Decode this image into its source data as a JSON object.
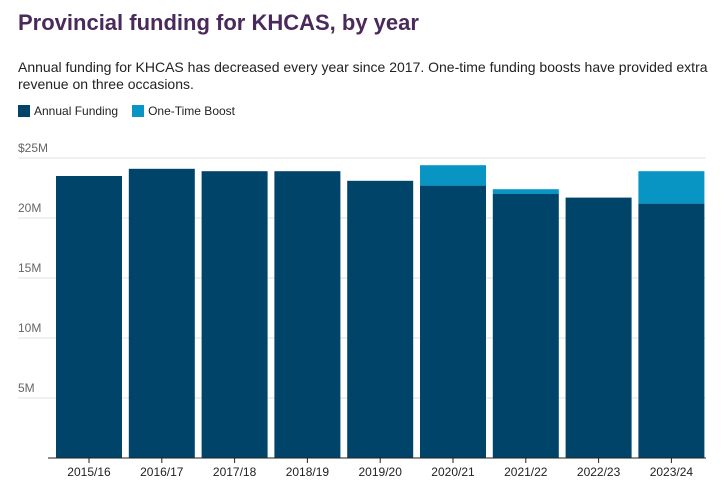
{
  "title": "Provincial funding for KHCAS, by year",
  "subtitle": "Annual funding for KHCAS has decreased every year since 2017. One-time funding boosts have provided extra revenue on three occasions.",
  "colors": {
    "annual": "#00446a",
    "boost": "#0895c4",
    "grid": "#e0e0e0",
    "axis": "#222222",
    "tick_text": "#666666"
  },
  "chart_data": {
    "type": "bar",
    "stacked": true,
    "categories": [
      "2015/16",
      "2016/17",
      "2017/18",
      "2018/19",
      "2019/20",
      "2020/21",
      "2021/22",
      "2022/23",
      "2023/24"
    ],
    "series": [
      {
        "name": "Annual Funding",
        "color": "#00446a",
        "values": [
          23.5,
          24.1,
          23.9,
          23.9,
          23.1,
          22.7,
          22.0,
          21.7,
          21.2
        ]
      },
      {
        "name": "One-Time Boost",
        "color": "#0895c4",
        "values": [
          0,
          0,
          0,
          0,
          0,
          1.7,
          0.4,
          0,
          2.7
        ]
      }
    ],
    "ylim": [
      0,
      25
    ],
    "yticks": [
      {
        "value": 25,
        "label": "$25M"
      },
      {
        "value": 20,
        "label": "20M"
      },
      {
        "value": 15,
        "label": "15M"
      },
      {
        "value": 10,
        "label": "10M"
      },
      {
        "value": 5,
        "label": "5M"
      }
    ],
    "grid": true,
    "legend_position": "top-left"
  }
}
